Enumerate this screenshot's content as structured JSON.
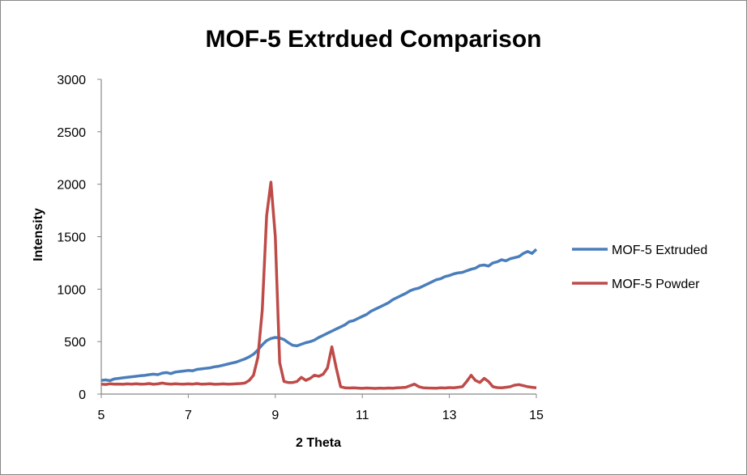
{
  "chart_data": {
    "type": "line",
    "title": "MOF-5 Extrdued Comparison",
    "xlabel": "2 Theta",
    "ylabel": "Intensity",
    "xlim": [
      5,
      15
    ],
    "ylim": [
      0,
      3000
    ],
    "xticks": [
      "5",
      "7",
      "9",
      "11",
      "13",
      "15"
    ],
    "yticks": [
      "0",
      "500",
      "1000",
      "1500",
      "2000",
      "2500",
      "3000"
    ],
    "grid": false,
    "legend_position": "right",
    "x_start": 5.0,
    "x_step": 0.1,
    "series": [
      {
        "name": "MOF-5 Extruded",
        "color": "#4a7ebb",
        "values": [
          130,
          135,
          128,
          145,
          150,
          155,
          160,
          165,
          170,
          175,
          178,
          185,
          190,
          185,
          200,
          205,
          195,
          210,
          215,
          220,
          225,
          222,
          235,
          240,
          245,
          250,
          260,
          265,
          275,
          285,
          295,
          305,
          320,
          335,
          355,
          380,
          420,
          470,
          510,
          530,
          540,
          535,
          520,
          490,
          465,
          460,
          475,
          490,
          500,
          515,
          540,
          560,
          580,
          600,
          620,
          640,
          660,
          690,
          700,
          720,
          740,
          760,
          790,
          810,
          830,
          850,
          870,
          900,
          920,
          940,
          960,
          985,
          1000,
          1010,
          1030,
          1050,
          1070,
          1090,
          1100,
          1120,
          1130,
          1145,
          1155,
          1160,
          1175,
          1190,
          1200,
          1225,
          1230,
          1220,
          1250,
          1260,
          1280,
          1270,
          1290,
          1300,
          1310,
          1340,
          1360,
          1340,
          1380
        ]
      },
      {
        "name": "MOF-5 Powder",
        "color": "#be4b48",
        "values": [
          95,
          92,
          98,
          94,
          96,
          93,
          97,
          95,
          99,
          94,
          96,
          100,
          93,
          97,
          105,
          98,
          95,
          99,
          96,
          94,
          97,
          95,
          100,
          94,
          96,
          98,
          93,
          95,
          97,
          94,
          96,
          98,
          100,
          105,
          130,
          180,
          350,
          800,
          1700,
          2020,
          1500,
          300,
          120,
          110,
          110,
          120,
          160,
          130,
          150,
          180,
          170,
          190,
          250,
          450,
          250,
          70,
          60,
          58,
          60,
          57,
          55,
          58,
          56,
          54,
          57,
          55,
          58,
          56,
          60,
          62,
          65,
          80,
          95,
          70,
          60,
          58,
          57,
          56,
          60,
          58,
          62,
          60,
          65,
          70,
          120,
          180,
          130,
          110,
          150,
          120,
          70,
          62,
          60,
          65,
          70,
          85,
          90,
          80,
          70,
          65,
          60
        ]
      }
    ]
  }
}
